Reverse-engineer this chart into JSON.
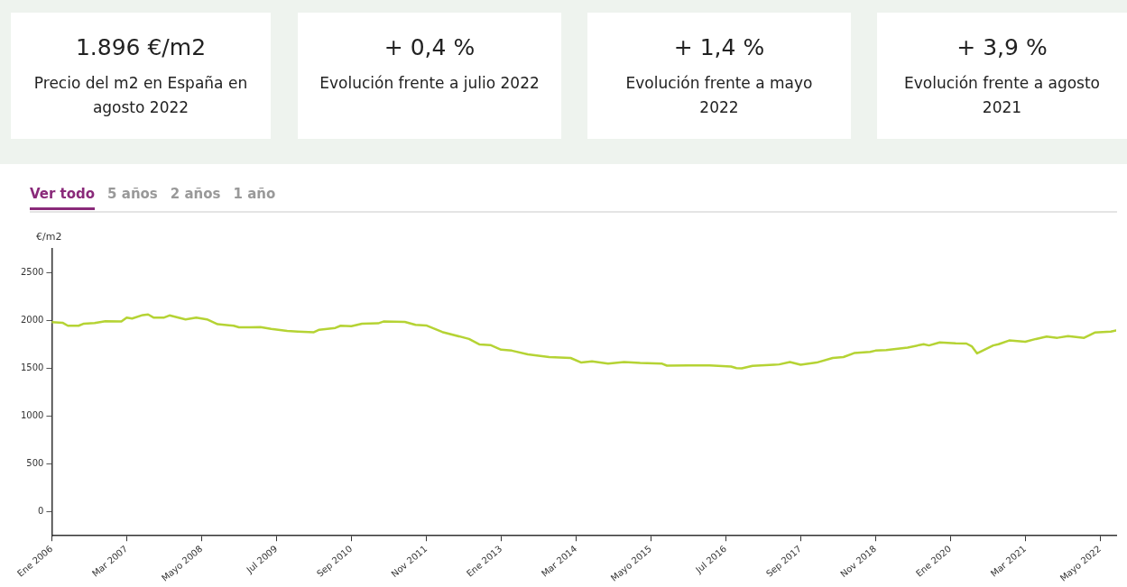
{
  "chart_data": [
    {
      "type": "other",
      "annotations": [
        "1.896 €/m2",
        "Precio del m2 en España en agosto 2022",
        "+ 0,4 %",
        "Evolución frente a julio 2022",
        "+ 1,4 %",
        "Evolución frente a mayo 2022",
        "+ 3,9 %",
        "Evolución frente a agosto 2021"
      ]
    },
    {
      "type": "line",
      "ylabel": "€/m2",
      "annotations": [
        "Ver todo",
        "5 años",
        "2 años",
        "1 año"
      ],
      "x": [
        "2006-01",
        "2006-03",
        "2006-04",
        "2006-06",
        "2006-07",
        "2006-09",
        "2006-11",
        "2007-02",
        "2007-03",
        "2007-04",
        "2007-06",
        "2007-07",
        "2007-08",
        "2007-10",
        "2007-11",
        "2008-01",
        "2008-02",
        "2008-04",
        "2008-06",
        "2008-08",
        "2008-11",
        "2008-12",
        "2009-02",
        "2009-04",
        "2009-06",
        "2009-09",
        "2009-11",
        "2010-02",
        "2010-03",
        "2010-06",
        "2010-07",
        "2010-09",
        "2010-11",
        "2011-02",
        "2011-03",
        "2011-07",
        "2011-09",
        "2011-11",
        "2012-02",
        "2012-07",
        "2012-09",
        "2012-11",
        "2013-01",
        "2013-03",
        "2013-06",
        "2013-10",
        "2014-02",
        "2014-04",
        "2014-06",
        "2014-09",
        "2014-12",
        "2015-03",
        "2015-07",
        "2015-08",
        "2015-12",
        "2016-04",
        "2016-08",
        "2016-09",
        "2016-10",
        "2016-12",
        "2017-04",
        "2017-05",
        "2017-07",
        "2017-09",
        "2017-12",
        "2018-03",
        "2018-05",
        "2018-07",
        "2018-10",
        "2018-11",
        "2019-01",
        "2019-05",
        "2019-08",
        "2019-09",
        "2019-11",
        "2020-02",
        "2020-04",
        "2020-05",
        "2020-06",
        "2020-09",
        "2020-10",
        "2020-12",
        "2021-03",
        "2021-05",
        "2021-07",
        "2021-09",
        "2021-11",
        "2022-02",
        "2022-04",
        "2022-07",
        "2022-08"
      ],
      "series": [
        {
          "color": "#b5d334",
          "values": [
            1984,
            1978,
            1946,
            1946,
            1968,
            1974,
            1994,
            1990,
            2032,
            2022,
            2058,
            2064,
            2032,
            2032,
            2054,
            2026,
            2013,
            2032,
            2013,
            1962,
            1946,
            1930,
            1930,
            1933,
            1913,
            1891,
            1885,
            1878,
            1904,
            1923,
            1946,
            1942,
            1968,
            1971,
            1990,
            1987,
            1955,
            1949,
            1881,
            1808,
            1750,
            1744,
            1696,
            1686,
            1647,
            1619,
            1609,
            1561,
            1574,
            1551,
            1567,
            1558,
            1551,
            1529,
            1532,
            1532,
            1519,
            1503,
            1500,
            1526,
            1538,
            1542,
            1567,
            1538,
            1561,
            1609,
            1619,
            1660,
            1673,
            1686,
            1692,
            1718,
            1753,
            1740,
            1772,
            1763,
            1760,
            1731,
            1657,
            1740,
            1753,
            1792,
            1779,
            1808,
            1833,
            1820,
            1837,
            1820,
            1875,
            1885,
            1896
          ]
        }
      ],
      "xlim": [
        "2006-01",
        "2022-08"
      ],
      "xticks": [
        {
          "value": "2006-01",
          "label": "Ene 2006"
        },
        {
          "value": "2007-03",
          "label": "Mar 2007"
        },
        {
          "value": "2008-05",
          "label": "Mayo 2008"
        },
        {
          "value": "2009-07",
          "label": "Jul 2009"
        },
        {
          "value": "2010-09",
          "label": "Sep 2010"
        },
        {
          "value": "2011-11",
          "label": "Nov 2011"
        },
        {
          "value": "2013-01",
          "label": "Ene 2013"
        },
        {
          "value": "2014-03",
          "label": "Mar 2014"
        },
        {
          "value": "2015-05",
          "label": "Mayo 2015"
        },
        {
          "value": "2016-07",
          "label": "Jul 2016"
        },
        {
          "value": "2017-09",
          "label": "Sep 2017"
        },
        {
          "value": "2018-11",
          "label": "Nov 2018"
        },
        {
          "value": "2020-01",
          "label": "Ene 2020"
        },
        {
          "value": "2021-03",
          "label": "Mar 2021"
        },
        {
          "value": "2022-05",
          "label": "Mayo 2022"
        }
      ],
      "ylim": [
        -250,
        2750
      ],
      "yticks": [
        0,
        500,
        1000,
        1500,
        2000,
        2500
      ],
      "grid": false,
      "legend": false,
      "marker": "none",
      "line_style": "solid"
    }
  ]
}
